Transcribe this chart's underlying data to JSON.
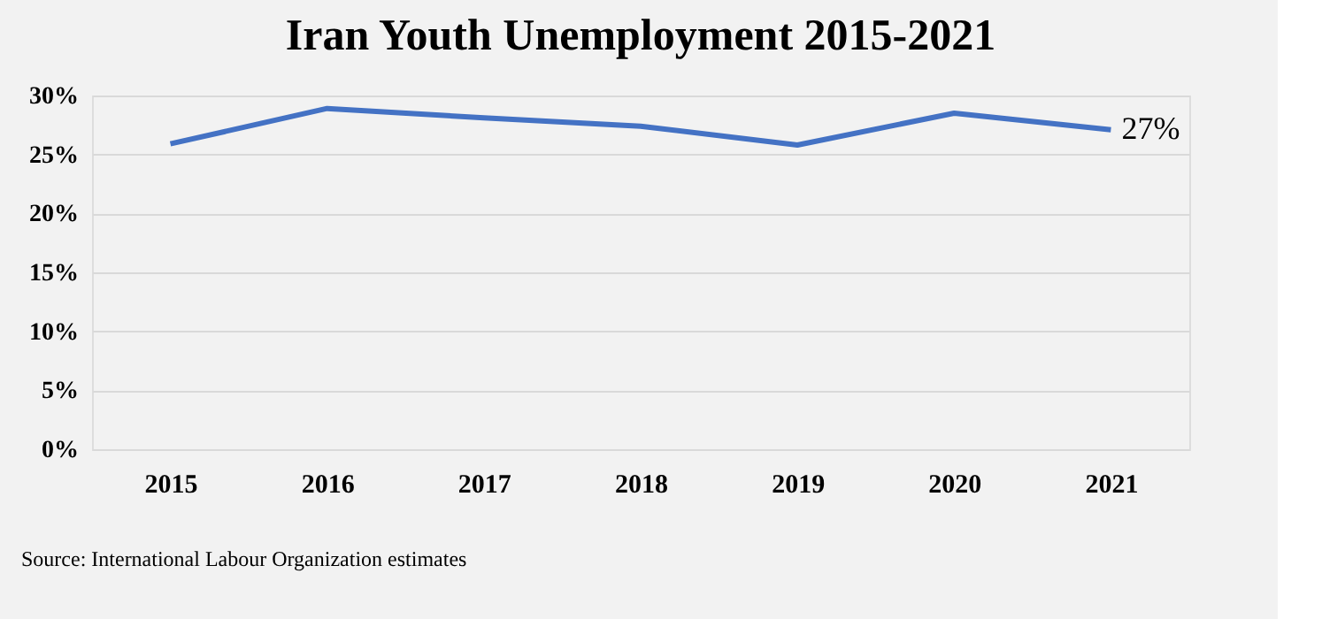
{
  "chart_data": {
    "type": "line",
    "title": "Iran Youth Unemployment 2015-2021",
    "categories": [
      "2015",
      "2016",
      "2017",
      "2018",
      "2019",
      "2020",
      "2021"
    ],
    "series": [
      {
        "color": "#4472c4",
        "values": [
          25.9,
          28.9,
          28.1,
          27.4,
          25.8,
          28.5,
          27.1
        ],
        "value_labels": [
          null,
          null,
          null,
          null,
          null,
          null,
          "27%"
        ]
      }
    ],
    "ylim": [
      0,
      30
    ],
    "yticks": [
      {
        "value": 0,
        "label": "0%"
      },
      {
        "value": 5,
        "label": "5%"
      },
      {
        "value": 10,
        "label": "10%"
      },
      {
        "value": 15,
        "label": "15%"
      },
      {
        "value": 20,
        "label": "20%"
      },
      {
        "value": 25,
        "label": "25%"
      },
      {
        "value": 30,
        "label": "30%"
      }
    ],
    "grid": "y",
    "marker": "none",
    "line_style": "solid",
    "annotations": [
      "Source:  International Labour Organization estimates"
    ]
  }
}
